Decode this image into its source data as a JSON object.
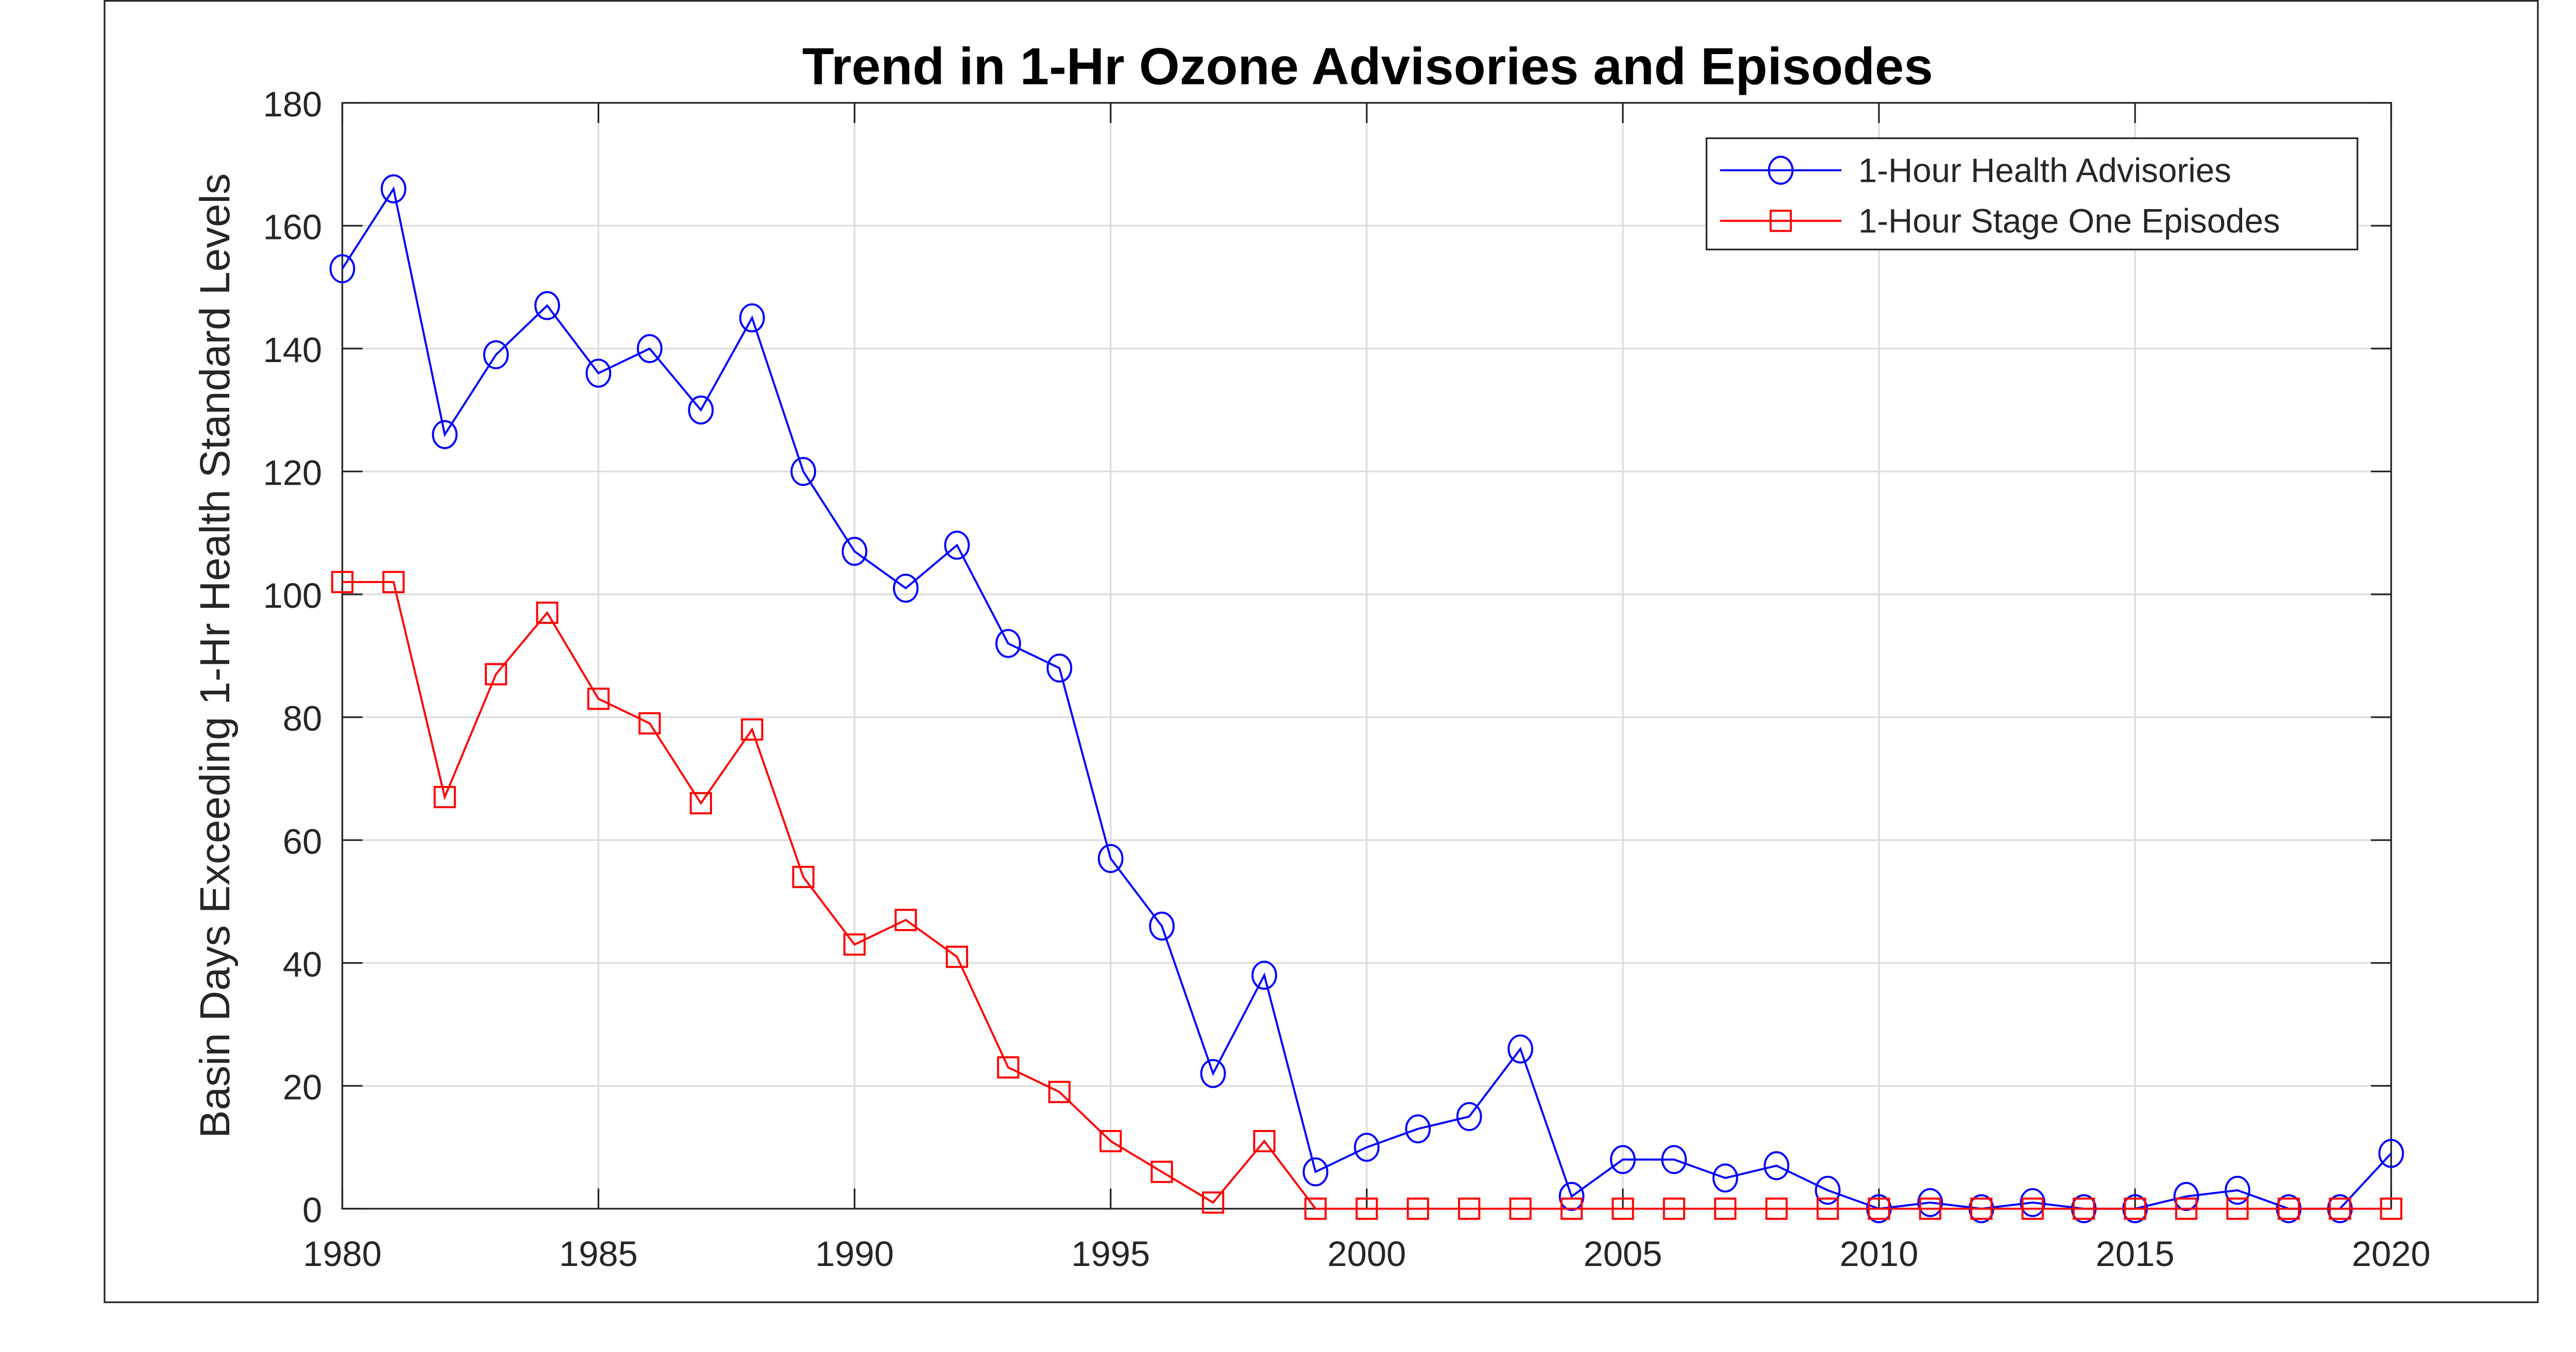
{
  "chart_data": {
    "type": "line",
    "title": "Trend in 1-Hr Ozone Advisories and Episodes",
    "xlabel": "",
    "ylabel": "Basin Days Exceeding 1-Hr Health Standard Levels",
    "xlim": [
      1980,
      2020
    ],
    "ylim": [
      0,
      180
    ],
    "xticks": [
      1980,
      1985,
      1990,
      1995,
      2000,
      2005,
      2010,
      2015,
      2020
    ],
    "yticks": [
      0,
      20,
      40,
      60,
      80,
      100,
      120,
      140,
      160,
      180
    ],
    "grid": true,
    "legend_position": "top-right",
    "x": [
      1980,
      1981,
      1982,
      1983,
      1984,
      1985,
      1986,
      1987,
      1988,
      1989,
      1990,
      1991,
      1992,
      1993,
      1994,
      1995,
      1996,
      1997,
      1998,
      1999,
      2000,
      2001,
      2002,
      2003,
      2004,
      2005,
      2006,
      2007,
      2008,
      2009,
      2010,
      2011,
      2012,
      2013,
      2014,
      2015,
      2016,
      2017,
      2018,
      2019,
      2020
    ],
    "series": [
      {
        "name": "1-Hour Health Advisories",
        "color": "#0000ff",
        "marker": "circle",
        "values": [
          153,
          166,
          126,
          139,
          147,
          136,
          140,
          130,
          145,
          120,
          107,
          101,
          108,
          92,
          88,
          57,
          46,
          22,
          38,
          6,
          10,
          13,
          15,
          26,
          2,
          8,
          8,
          5,
          7,
          3,
          0,
          1,
          0,
          1,
          0,
          0,
          2,
          3,
          0,
          0,
          9
        ]
      },
      {
        "name": "1-Hour Stage One Episodes",
        "color": "#ff0000",
        "marker": "square",
        "values": [
          102,
          102,
          67,
          87,
          97,
          83,
          79,
          66,
          78,
          54,
          43,
          47,
          41,
          23,
          19,
          11,
          6,
          1,
          11,
          0,
          0,
          0,
          0,
          0,
          0,
          0,
          0,
          0,
          0,
          0,
          0,
          0,
          0,
          0,
          0,
          0,
          0,
          0,
          0,
          0,
          0
        ]
      }
    ]
  }
}
